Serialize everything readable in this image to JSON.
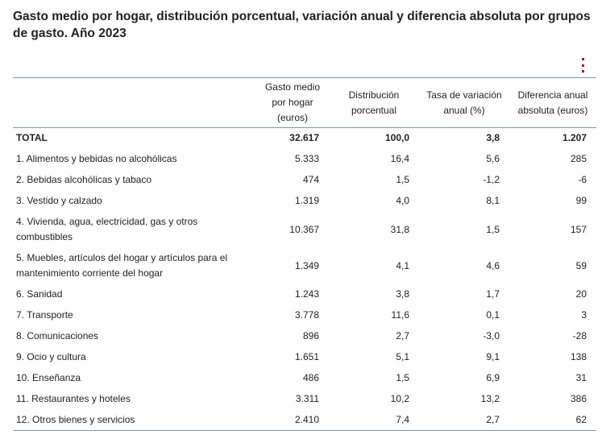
{
  "title": "Gasto medio por hogar, distribución porcentual, variación anual y diferencia absoluta por grupos de gasto. Año 2023",
  "menu_icon": "vertical-dots-icon",
  "accent_color": "#a6093d",
  "border_color": "#7a9bb5",
  "table": {
    "headers": [
      "",
      "Gasto medio por hogar (euros)",
      "Distribución porcentual",
      "Tasa de variación anual (%)",
      "Diferencia anual absoluta (euros)"
    ],
    "rows": [
      {
        "label": "TOTAL",
        "gasto": "32.617",
        "distribucion": "100,0",
        "tasa": "3,8",
        "diferencia": "1.207"
      },
      {
        "label": "1. Alimentos y bebidas no alcohólicas",
        "gasto": "5.333",
        "distribucion": "16,4",
        "tasa": "5,6",
        "diferencia": "285"
      },
      {
        "label": "2. Bebidas alcohólicas y tabaco",
        "gasto": "474",
        "distribucion": "1,5",
        "tasa": "-1,2",
        "diferencia": "-6"
      },
      {
        "label": "3. Vestido y calzado",
        "gasto": "1.319",
        "distribucion": "4,0",
        "tasa": "8,1",
        "diferencia": "99"
      },
      {
        "label": "4. Vivienda, agua, electricidad, gas y otros combustibles",
        "gasto": "10.367",
        "distribucion": "31,8",
        "tasa": "1,5",
        "diferencia": "157"
      },
      {
        "label": "5. Muebles, artículos del hogar y artículos para el mantenimiento corriente del hogar",
        "gasto": "1.349",
        "distribucion": "4,1",
        "tasa": "4,6",
        "diferencia": "59"
      },
      {
        "label": "6. Sanidad",
        "gasto": "1.243",
        "distribucion": "3,8",
        "tasa": "1,7",
        "diferencia": "20"
      },
      {
        "label": "7. Transporte",
        "gasto": "3.778",
        "distribucion": "11,6",
        "tasa": "0,1",
        "diferencia": "3"
      },
      {
        "label": "8. Comunicaciones",
        "gasto": "896",
        "distribucion": "2,7",
        "tasa": "-3,0",
        "diferencia": "-28"
      },
      {
        "label": "9. Ocio y cultura",
        "gasto": "1.651",
        "distribucion": "5,1",
        "tasa": "9,1",
        "diferencia": "138"
      },
      {
        "label": "10. Enseñanza",
        "gasto": "486",
        "distribucion": "1,5",
        "tasa": "6,9",
        "diferencia": "31"
      },
      {
        "label": "11. Restaurantes y hoteles",
        "gasto": "3.311",
        "distribucion": "10,2",
        "tasa": "13,2",
        "diferencia": "386"
      },
      {
        "label": "12. Otros bienes y servicios",
        "gasto": "2.410",
        "distribucion": "7,4",
        "tasa": "2,7",
        "diferencia": "62"
      }
    ]
  }
}
